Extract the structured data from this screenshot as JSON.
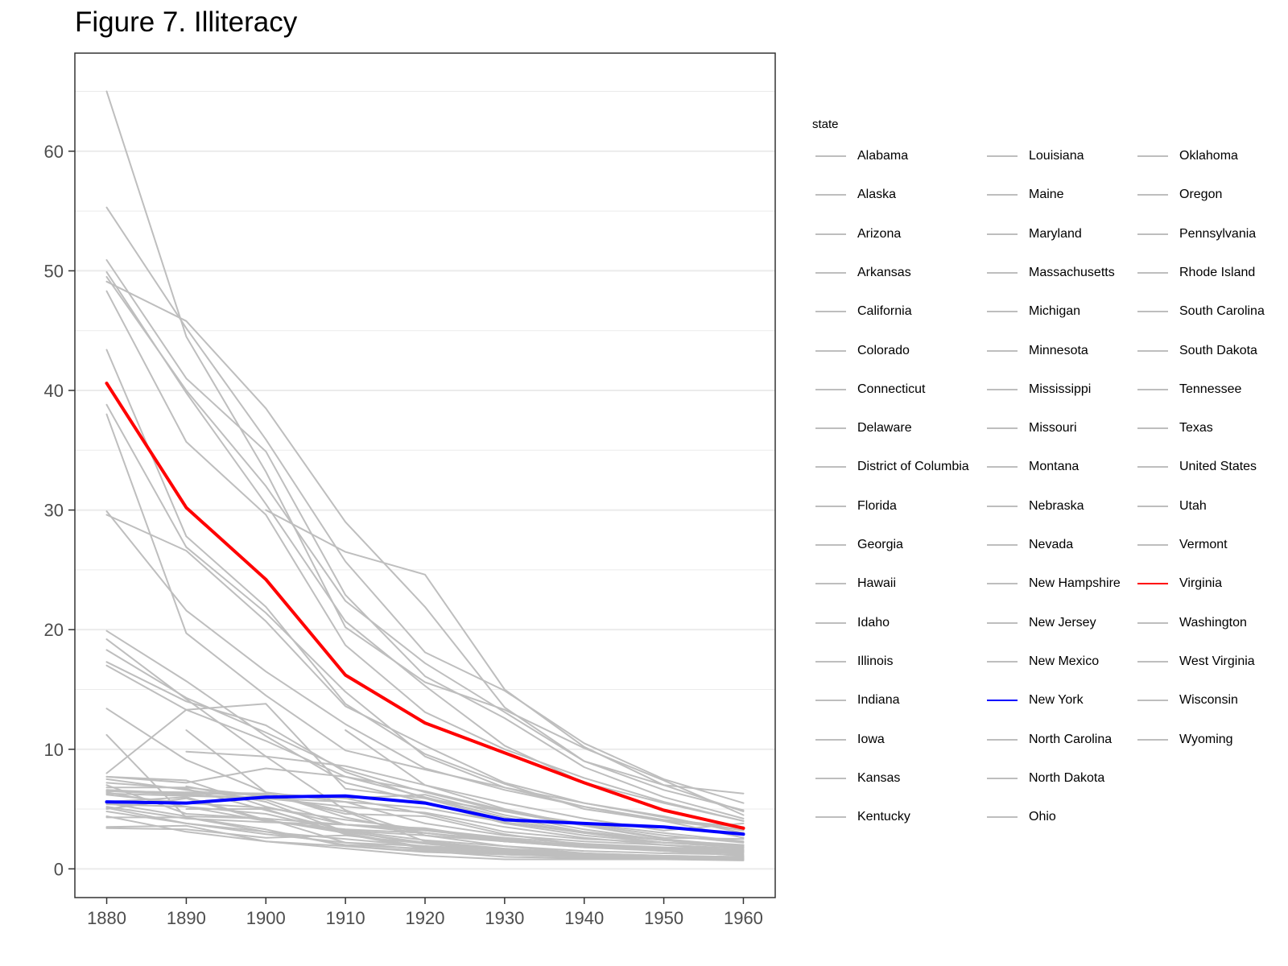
{
  "chart_data": {
    "type": "line",
    "title": "Figure 7. Illiteracy",
    "xlabel": "",
    "ylabel": "",
    "x": [
      1880,
      1890,
      1900,
      1910,
      1920,
      1930,
      1940,
      1950,
      1960
    ],
    "xlim": [
      1876,
      1964
    ],
    "ylim": [
      -2.4,
      68.2
    ],
    "yticks": [
      0,
      10,
      20,
      30,
      40,
      50,
      60
    ],
    "grid": true,
    "legend": {
      "title": "state",
      "placement": "right",
      "columns": 3
    },
    "series": [
      {
        "name": "Alabama",
        "color": "#bebebe",
        "values": [
          50.9,
          41.0,
          34.9,
          22.9,
          16.1,
          12.6,
          8.5,
          6.0,
          4.2
        ]
      },
      {
        "name": "Alaska",
        "color": "#bebebe",
        "values": [
          null,
          null,
          null,
          11.6,
          7.0,
          5.0,
          3.6,
          2.6,
          2.5
        ]
      },
      {
        "name": "Arizona",
        "color": "#bebebe",
        "values": [
          null,
          9.8,
          9.4,
          8.6,
          7.0,
          5.5,
          4.2,
          3.2,
          3.8
        ]
      },
      {
        "name": "Arkansas",
        "color": "#bebebe",
        "values": [
          38.8,
          26.9,
          21.4,
          14.8,
          9.4,
          6.8,
          5.5,
          4.4,
          3.0
        ]
      },
      {
        "name": "California",
        "color": "#bebebe",
        "values": [
          7.7,
          7.4,
          5.2,
          3.7,
          3.3,
          2.6,
          2.1,
          1.8,
          1.6
        ]
      },
      {
        "name": "Colorado",
        "color": "#bebebe",
        "values": [
          7.0,
          4.6,
          4.2,
          3.7,
          3.2,
          2.5,
          1.9,
          1.5,
          1.1
        ]
      },
      {
        "name": "Connecticut",
        "color": "#bebebe",
        "values": [
          6.5,
          6.4,
          6.3,
          5.9,
          6.2,
          4.5,
          3.3,
          2.4,
          1.8
        ]
      },
      {
        "name": "Delaware",
        "color": "#bebebe",
        "values": [
          17.3,
          14.0,
          12.0,
          8.1,
          5.9,
          4.1,
          3.0,
          2.2,
          1.8
        ]
      },
      {
        "name": "District of Columbia",
        "color": "#bebebe",
        "values": [
          19.2,
          14.2,
          9.4,
          4.9,
          2.8,
          1.9,
          1.3,
          1.0,
          1.0
        ]
      },
      {
        "name": "Florida",
        "color": "#bebebe",
        "values": [
          43.4,
          27.8,
          21.9,
          13.8,
          9.6,
          7.1,
          5.0,
          4.0,
          2.6
        ]
      },
      {
        "name": "Georgia",
        "color": "#bebebe",
        "values": [
          49.9,
          39.8,
          30.5,
          20.7,
          15.3,
          10.3,
          7.2,
          5.5,
          4.0
        ]
      },
      {
        "name": "Hawaii",
        "color": "#bebebe",
        "values": [
          null,
          null,
          30.0,
          26.5,
          24.6,
          15.0,
          10.2,
          7.0,
          4.8
        ]
      },
      {
        "name": "Idaho",
        "color": "#bebebe",
        "values": [
          5.5,
          4.4,
          4.2,
          2.2,
          1.9,
          1.6,
          1.2,
          1.0,
          0.9
        ]
      },
      {
        "name": "Illinois",
        "color": "#bebebe",
        "values": [
          5.2,
          4.2,
          3.9,
          3.7,
          3.4,
          2.4,
          2.0,
          1.7,
          1.6
        ]
      },
      {
        "name": "Indiana",
        "color": "#bebebe",
        "values": [
          6.4,
          5.2,
          4.6,
          3.1,
          2.2,
          1.6,
          1.3,
          1.1,
          1.0
        ]
      },
      {
        "name": "Iowa",
        "color": "#bebebe",
        "values": [
          3.5,
          3.6,
          2.3,
          1.7,
          1.1,
          0.8,
          0.8,
          0.8,
          0.7
        ]
      },
      {
        "name": "Kansas",
        "color": "#bebebe",
        "values": [
          4.8,
          3.8,
          2.9,
          2.2,
          1.6,
          1.2,
          1.1,
          1.0,
          0.8
        ]
      },
      {
        "name": "Kentucky",
        "color": "#bebebe",
        "values": [
          29.9,
          21.6,
          16.5,
          12.1,
          8.4,
          6.6,
          5.2,
          4.0,
          3.3
        ]
      },
      {
        "name": "Louisiana",
        "color": "#bebebe",
        "values": [
          49.1,
          45.8,
          38.5,
          29.0,
          21.9,
          13.5,
          9.0,
          7.0,
          6.3
        ]
      },
      {
        "name": "Maine",
        "color": "#bebebe",
        "values": [
          5.5,
          5.5,
          5.1,
          4.1,
          3.3,
          2.3,
          1.8,
          1.5,
          1.3
        ]
      },
      {
        "name": "Maryland",
        "color": "#bebebe",
        "values": [
          19.9,
          15.7,
          11.1,
          7.2,
          5.6,
          3.8,
          2.8,
          2.2,
          1.8
        ]
      },
      {
        "name": "Massachusetts",
        "color": "#bebebe",
        "values": [
          6.5,
          6.2,
          5.9,
          5.2,
          4.7,
          3.5,
          2.6,
          2.0,
          1.7
        ]
      },
      {
        "name": "Michigan",
        "color": "#bebebe",
        "values": [
          5.0,
          5.9,
          4.0,
          3.3,
          3.0,
          2.3,
          1.8,
          1.6,
          1.4
        ]
      },
      {
        "name": "Minnesota",
        "color": "#bebebe",
        "values": [
          5.6,
          6.0,
          4.1,
          3.0,
          1.8,
          1.3,
          1.0,
          0.9,
          0.8
        ]
      },
      {
        "name": "Mississippi",
        "color": "#bebebe",
        "values": [
          49.5,
          40.0,
          32.0,
          22.4,
          17.2,
          13.1,
          9.0,
          6.6,
          4.9
        ]
      },
      {
        "name": "Missouri",
        "color": "#bebebe",
        "values": [
          13.4,
          9.1,
          6.4,
          4.3,
          3.0,
          2.3,
          1.9,
          1.6,
          1.5
        ]
      },
      {
        "name": "Montana",
        "color": "#bebebe",
        "values": [
          6.2,
          5.5,
          6.2,
          4.8,
          2.3,
          1.7,
          1.3,
          1.0,
          0.8
        ]
      },
      {
        "name": "Nebraska",
        "color": "#bebebe",
        "values": [
          4.4,
          3.1,
          2.3,
          1.9,
          1.4,
          1.2,
          1.1,
          1.0,
          0.8
        ]
      },
      {
        "name": "Nevada",
        "color": "#bebebe",
        "values": [
          8.0,
          13.3,
          13.8,
          6.7,
          5.9,
          4.8,
          3.6,
          2.5,
          1.9
        ]
      },
      {
        "name": "New Hampshire",
        "color": "#bebebe",
        "values": [
          6.6,
          6.3,
          6.2,
          4.6,
          4.4,
          2.9,
          2.0,
          1.5,
          1.1
        ]
      },
      {
        "name": "New Jersey",
        "color": "#bebebe",
        "values": [
          6.3,
          6.1,
          5.9,
          5.6,
          5.1,
          3.9,
          3.0,
          2.4,
          2.0
        ]
      },
      {
        "name": "New Mexico",
        "color": "#bebebe",
        "values": [
          65.0,
          44.5,
          33.2,
          20.2,
          15.6,
          13.3,
          10.1,
          7.4,
          4.5
        ]
      },
      {
        "name": "New York",
        "color": "#0000ff",
        "values": [
          5.6,
          5.5,
          6.0,
          6.1,
          5.5,
          4.1,
          3.8,
          3.5,
          2.9
        ]
      },
      {
        "name": "North Carolina",
        "color": "#bebebe",
        "values": [
          48.3,
          35.7,
          29.6,
          18.7,
          13.1,
          10.0,
          7.6,
          5.6,
          4.0
        ]
      },
      {
        "name": "North Dakota",
        "color": "#bebebe",
        "values": [
          null,
          6.9,
          5.6,
          3.1,
          2.1,
          1.5,
          1.2,
          1.0,
          0.9
        ]
      },
      {
        "name": "Ohio",
        "color": "#bebebe",
        "values": [
          5.4,
          5.2,
          4.0,
          3.2,
          2.8,
          2.3,
          1.9,
          1.6,
          1.4
        ]
      },
      {
        "name": "Oklahoma",
        "color": "#bebebe",
        "values": [
          null,
          11.6,
          6.4,
          5.6,
          3.8,
          2.8,
          2.3,
          2.0,
          1.5
        ]
      },
      {
        "name": "Oregon",
        "color": "#bebebe",
        "values": [
          4.3,
          4.3,
          3.3,
          1.9,
          1.5,
          1.0,
          0.9,
          0.9,
          0.8
        ]
      },
      {
        "name": "Pennsylvania",
        "color": "#bebebe",
        "values": [
          6.8,
          6.8,
          6.1,
          5.9,
          4.6,
          3.1,
          2.5,
          2.2,
          2.0
        ]
      },
      {
        "name": "Rhode Island",
        "color": "#bebebe",
        "values": [
          7.7,
          7.2,
          8.4,
          7.7,
          6.5,
          4.9,
          3.7,
          2.8,
          2.2
        ]
      },
      {
        "name": "South Carolina",
        "color": "#bebebe",
        "values": [
          55.3,
          45.2,
          35.9,
          25.7,
          18.1,
          14.9,
          10.5,
          7.5,
          5.5
        ]
      },
      {
        "name": "South Dakota",
        "color": "#bebebe",
        "values": [
          null,
          5.0,
          5.0,
          2.9,
          1.7,
          1.2,
          1.0,
          0.9,
          0.8
        ]
      },
      {
        "name": "Tennessee",
        "color": "#bebebe",
        "values": [
          29.6,
          26.6,
          20.7,
          13.6,
          10.3,
          7.2,
          5.5,
          4.3,
          3.2
        ]
      },
      {
        "name": "Texas",
        "color": "#bebebe",
        "values": [
          38.0,
          19.7,
          14.5,
          9.9,
          8.3,
          6.8,
          5.2,
          4.1,
          3.5
        ]
      },
      {
        "name": "United States",
        "color": "#bebebe",
        "values": [
          17.0,
          13.3,
          10.7,
          7.7,
          6.0,
          4.3,
          3.1,
          2.4,
          1.9
        ]
      },
      {
        "name": "Utah",
        "color": "#bebebe",
        "values": [
          5.1,
          3.8,
          3.1,
          2.5,
          1.9,
          1.4,
          1.1,
          1.0,
          0.9
        ]
      },
      {
        "name": "Vermont",
        "color": "#bebebe",
        "values": [
          7.5,
          6.6,
          5.8,
          3.7,
          3.0,
          2.4,
          2.0,
          1.7,
          1.5
        ]
      },
      {
        "name": "Virginia",
        "color": "#ff0000",
        "values": [
          40.6,
          30.2,
          24.2,
          16.2,
          12.2,
          9.7,
          7.2,
          4.9,
          3.4
        ]
      },
      {
        "name": "Washington",
        "color": "#bebebe",
        "values": [
          11.2,
          4.3,
          3.1,
          2.0,
          1.7,
          1.2,
          1.0,
          0.9,
          0.8
        ]
      },
      {
        "name": "West Virginia",
        "color": "#bebebe",
        "values": [
          18.3,
          14.3,
          11.4,
          8.3,
          6.4,
          4.8,
          3.8,
          3.0,
          2.3
        ]
      },
      {
        "name": "Wisconsin",
        "color": "#bebebe",
        "values": [
          7.2,
          6.7,
          4.9,
          3.2,
          2.4,
          1.9,
          1.5,
          1.3,
          1.2
        ]
      },
      {
        "name": "Wyoming",
        "color": "#bebebe",
        "values": [
          3.4,
          3.3,
          2.6,
          2.8,
          2.1,
          1.6,
          1.3,
          1.1,
          1.0
        ]
      }
    ]
  }
}
